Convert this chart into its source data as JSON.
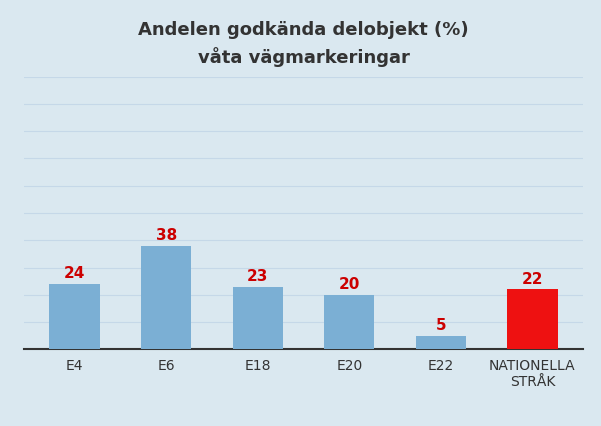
{
  "categories": [
    "E4",
    "E6",
    "E18",
    "E20",
    "E22",
    "NATIONELLA\nSTRÅK"
  ],
  "values": [
    24,
    38,
    23,
    20,
    5,
    22
  ],
  "bar_colors": [
    "#7BAFD4",
    "#7BAFD4",
    "#7BAFD4",
    "#7BAFD4",
    "#7BAFD4",
    "#EE1111"
  ],
  "label_color": "#CC0000",
  "title_line1": "Andelen godkända delobjekt (%)",
  "title_line2": "våta vägmarkeringar",
  "title_fontsize": 13,
  "label_fontsize": 11,
  "tick_fontsize": 10,
  "background_color": "#DAE8F0",
  "ylim": [
    0,
    100
  ],
  "yticks": [
    0,
    10,
    20,
    30,
    40,
    50,
    60,
    70,
    80,
    90,
    100
  ],
  "bar_width": 0.55,
  "grid_color": "#C5D8E8",
  "bottom_spine_color": "#333333"
}
